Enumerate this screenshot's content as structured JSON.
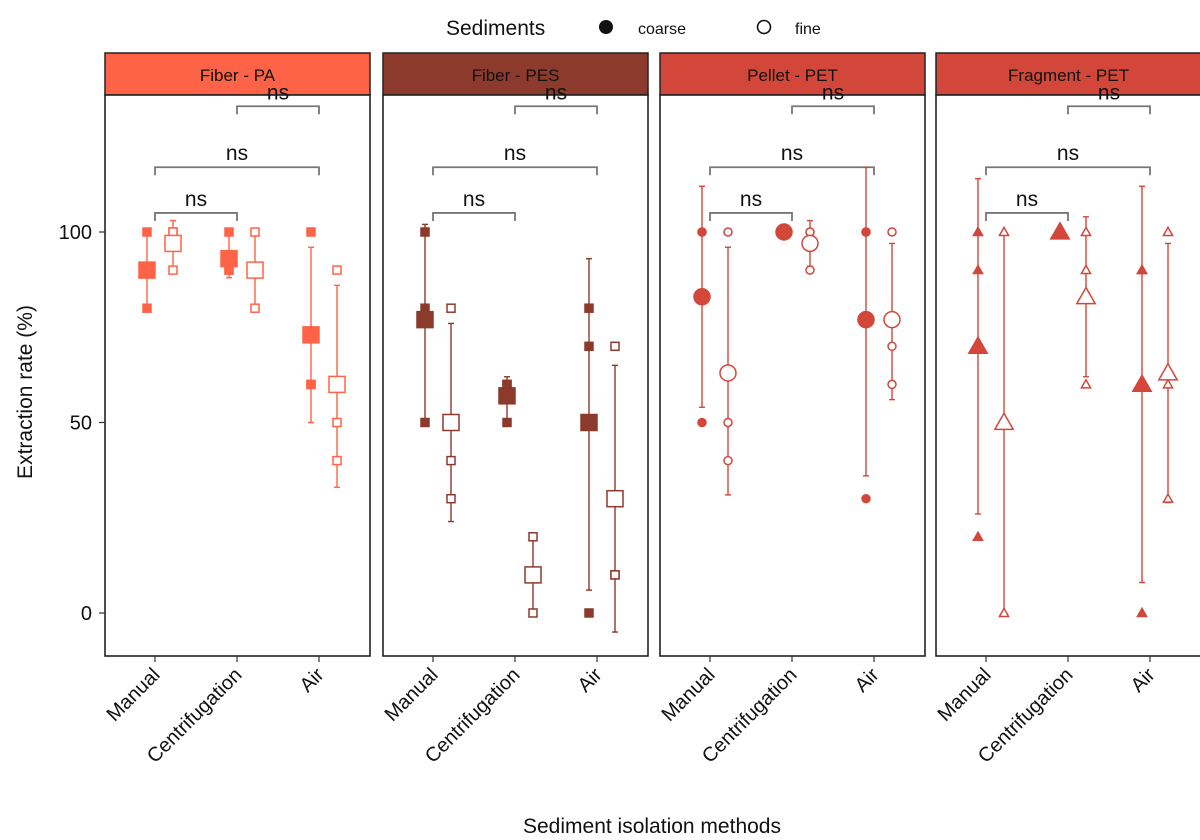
{
  "chart_data": {
    "type": "scatter",
    "title": "",
    "xlabel": "Sediment isolation methods",
    "ylabel": "Extraction rate (%)",
    "ylim": [
      -10,
      140
    ],
    "yticks": [
      0,
      50,
      100
    ],
    "categories": [
      "Manual",
      "Centrifugation",
      "Air"
    ],
    "legend": {
      "title": "Sediments",
      "position": "top",
      "items": [
        {
          "key": "coarse",
          "label": "coarse",
          "fill": "filled"
        },
        {
          "key": "fine",
          "label": "fine",
          "fill": "open"
        }
      ]
    },
    "panels": [
      {
        "strip": "Fiber - PA",
        "color": "#FF6347",
        "shape": "square",
        "groups": [
          {
            "method": "Manual",
            "coarse": {
              "mean": 90,
              "lo": 80,
              "hi": 100,
              "points": [
                80,
                90,
                100
              ]
            },
            "fine": {
              "mean": 97,
              "lo": 90,
              "hi": 103,
              "points": [
                90,
                100,
                100
              ]
            }
          },
          {
            "method": "Centrifugation",
            "coarse": {
              "mean": 93,
              "lo": 88,
              "hi": 100,
              "points": [
                90,
                90,
                100
              ]
            },
            "fine": {
              "mean": 90,
              "lo": 80,
              "hi": 100,
              "points": [
                80,
                90,
                100
              ]
            }
          },
          {
            "method": "Air",
            "coarse": {
              "mean": 73,
              "lo": 50,
              "hi": 96,
              "points": [
                60,
                60,
                100
              ]
            },
            "fine": {
              "mean": 60,
              "lo": 33,
              "hi": 86,
              "points": [
                40,
                50,
                90
              ]
            }
          }
        ]
      },
      {
        "strip": "Fiber - PES",
        "color": "#8B3A2B",
        "shape": "square",
        "groups": [
          {
            "method": "Manual",
            "coarse": {
              "mean": 77,
              "lo": 51,
              "hi": 102,
              "points": [
                50,
                80,
                100
              ]
            },
            "fine": {
              "mean": 50,
              "lo": 24,
              "hi": 76,
              "points": [
                30,
                40,
                80
              ]
            }
          },
          {
            "method": "Centrifugation",
            "coarse": {
              "mean": 57,
              "lo": 51,
              "hi": 62,
              "points": [
                50,
                60,
                60
              ]
            },
            "fine": {
              "mean": 10,
              "lo": 0,
              "hi": 20,
              "points": [
                0,
                10,
                20
              ]
            }
          },
          {
            "method": "Air",
            "coarse": {
              "mean": 50,
              "lo": 6,
              "hi": 93,
              "points": [
                0,
                70,
                80
              ]
            },
            "fine": {
              "mean": 30,
              "lo": -5,
              "hi": 65,
              "points": [
                10,
                10,
                70
              ]
            }
          }
        ]
      },
      {
        "strip": "Pellet - PET",
        "color": "#D2473A",
        "shape": "circle",
        "groups": [
          {
            "method": "Manual",
            "coarse": {
              "mean": 83,
              "lo": 54,
              "hi": 112,
              "points": [
                50,
                100,
                100
              ]
            },
            "fine": {
              "mean": 63,
              "lo": 31,
              "hi": 96,
              "points": [
                40,
                50,
                100
              ]
            }
          },
          {
            "method": "Centrifugation",
            "coarse": {
              "mean": 100,
              "lo": 100,
              "hi": 100,
              "points": [
                100,
                100,
                100
              ]
            },
            "fine": {
              "mean": 97,
              "lo": 91,
              "hi": 103,
              "points": [
                90,
                100,
                100
              ]
            }
          },
          {
            "method": "Air",
            "coarse": {
              "mean": 77,
              "lo": 36,
              "hi": 117,
              "points": [
                30,
                100,
                100
              ]
            },
            "fine": {
              "mean": 77,
              "lo": 56,
              "hi": 97,
              "points": [
                60,
                70,
                100
              ]
            }
          }
        ]
      },
      {
        "strip": "Fragment - PET",
        "color": "#D2473A",
        "shape": "triangle",
        "groups": [
          {
            "method": "Manual",
            "coarse": {
              "mean": 70,
              "lo": 26,
              "hi": 114,
              "points": [
                20,
                90,
                100
              ]
            },
            "fine": {
              "mean": 50,
              "lo": 0,
              "hi": 100,
              "points": [
                0,
                50,
                100
              ]
            }
          },
          {
            "method": "Centrifugation",
            "coarse": {
              "mean": 100,
              "lo": 100,
              "hi": 100,
              "points": [
                100,
                100,
                100
              ]
            },
            "fine": {
              "mean": 83,
              "lo": 62,
              "hi": 104,
              "points": [
                60,
                90,
                100
              ]
            }
          },
          {
            "method": "Air",
            "coarse": {
              "mean": 60,
              "lo": 8,
              "hi": 112,
              "points": [
                0,
                90,
                90
              ]
            },
            "fine": {
              "mean": 63,
              "lo": 29,
              "hi": 97,
              "points": [
                30,
                60,
                100
              ]
            }
          }
        ]
      }
    ],
    "comparisons": [
      {
        "from": "Centrifugation",
        "to": "Air",
        "label": "ns",
        "level": 133
      },
      {
        "from": "Manual",
        "to": "Air",
        "label": "ns",
        "level": 117
      },
      {
        "from": "Manual",
        "to": "Centrifugation",
        "label": "ns",
        "level": 105
      }
    ]
  }
}
